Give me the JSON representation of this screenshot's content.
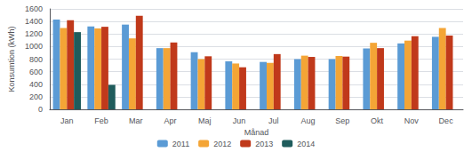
{
  "chart_data": {
    "type": "bar",
    "categories": [
      "Jan",
      "Feb",
      "Mar",
      "Apr",
      "Maj",
      "Jun",
      "Jul",
      "Aug",
      "Sep",
      "Okt",
      "Nov",
      "Dec"
    ],
    "series": [
      {
        "name": "2011",
        "color": "#5B9BD5",
        "values": [
          1430,
          1320,
          1350,
          975,
          910,
          765,
          755,
          800,
          800,
          970,
          1050,
          1155
        ]
      },
      {
        "name": "2012",
        "color": "#F4A536",
        "values": [
          1295,
          1290,
          1130,
          975,
          800,
          730,
          740,
          855,
          850,
          1060,
          1095,
          1295
        ]
      },
      {
        "name": "2013",
        "color": "#C0391B",
        "values": [
          1420,
          1315,
          1490,
          1065,
          845,
          670,
          880,
          835,
          840,
          975,
          1165,
          1175
        ]
      },
      {
        "name": "2014",
        "color": "#1F5C5C",
        "values": [
          1230,
          390,
          null,
          null,
          null,
          null,
          null,
          null,
          null,
          null,
          null,
          null
        ]
      }
    ],
    "xlabel": "Månad",
    "ylabel": "Konsumtion (kWh)",
    "ylim": [
      0,
      1600
    ],
    "yticks": [
      0,
      200,
      400,
      600,
      800,
      1000,
      1200,
      1400,
      1600
    ],
    "grid": true,
    "legend": "bottom"
  }
}
